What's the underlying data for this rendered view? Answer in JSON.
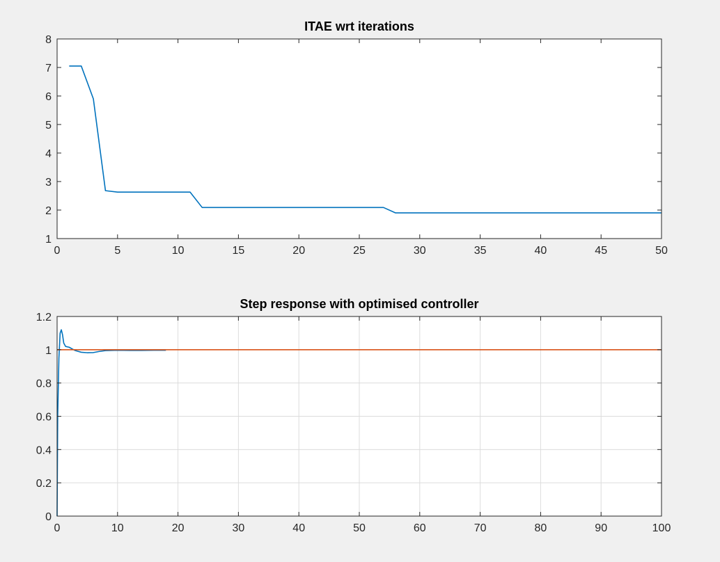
{
  "chart_data": [
    {
      "type": "line",
      "title": "ITAE wrt iterations",
      "xlabel": "",
      "ylabel": "",
      "xlim": [
        0,
        50
      ],
      "ylim": [
        1,
        8
      ],
      "xticks": [
        0,
        5,
        10,
        15,
        20,
        25,
        30,
        35,
        40,
        45,
        50
      ],
      "yticks": [
        1,
        2,
        3,
        4,
        5,
        6,
        7,
        8
      ],
      "xticklabels": [
        "0",
        "5",
        "10",
        "15",
        "20",
        "25",
        "30",
        "35",
        "40",
        "45",
        "50"
      ],
      "yticklabels": [
        "1",
        "2",
        "3",
        "4",
        "5",
        "6",
        "7",
        "8"
      ],
      "grid": false,
      "series": [
        {
          "color": "#0072bd",
          "x": [
            1,
            2,
            3,
            4,
            5,
            6,
            7,
            8,
            9,
            10,
            11,
            12,
            13,
            14,
            15,
            16,
            17,
            18,
            19,
            20,
            21,
            22,
            23,
            24,
            25,
            26,
            27,
            28,
            29,
            30,
            31,
            32,
            33,
            34,
            35,
            36,
            37,
            38,
            39,
            40,
            41,
            42,
            43,
            44,
            45,
            46,
            47,
            48,
            49,
            50
          ],
          "y": [
            7.05,
            7.05,
            5.9,
            2.68,
            2.63,
            2.63,
            2.63,
            2.63,
            2.63,
            2.63,
            2.63,
            2.09,
            2.09,
            2.09,
            2.09,
            2.09,
            2.09,
            2.09,
            2.09,
            2.09,
            2.09,
            2.09,
            2.09,
            2.09,
            2.09,
            2.09,
            2.09,
            1.9,
            1.9,
            1.9,
            1.9,
            1.9,
            1.9,
            1.9,
            1.9,
            1.9,
            1.9,
            1.9,
            1.9,
            1.9,
            1.9,
            1.9,
            1.9,
            1.9,
            1.9,
            1.9,
            1.9,
            1.9,
            1.9,
            1.9
          ]
        }
      ]
    },
    {
      "type": "line",
      "title": "Step response with optimised controller",
      "xlabel": "",
      "ylabel": "",
      "xlim": [
        0,
        100
      ],
      "ylim": [
        0,
        1.2
      ],
      "xticks": [
        0,
        10,
        20,
        30,
        40,
        50,
        60,
        70,
        80,
        90,
        100
      ],
      "yticks": [
        0,
        0.2,
        0.4,
        0.6,
        0.8,
        1,
        1.2
      ],
      "xticklabels": [
        "0",
        "10",
        "20",
        "30",
        "40",
        "50",
        "60",
        "70",
        "80",
        "90",
        "100"
      ],
      "yticklabels": [
        "0",
        "0.2",
        "0.4",
        "0.6",
        "0.8",
        "1",
        "1.2"
      ],
      "grid": true,
      "series": [
        {
          "color": "#0072bd",
          "x": [
            0,
            0.1,
            0.3,
            0.5,
            0.7,
            0.9,
            1.1,
            1.4,
            2,
            3,
            4,
            5,
            6,
            7,
            8,
            10,
            12,
            14,
            16,
            18
          ],
          "y": [
            0,
            0.6,
            0.95,
            1.1,
            1.12,
            1.09,
            1.04,
            1.02,
            1.015,
            0.995,
            0.985,
            0.982,
            0.983,
            0.99,
            0.995,
            0.997,
            0.996,
            0.996,
            0.997,
            0.997
          ]
        },
        {
          "color": "#d95319",
          "x": [
            0,
            100
          ],
          "y": [
            1,
            1
          ]
        }
      ]
    }
  ]
}
